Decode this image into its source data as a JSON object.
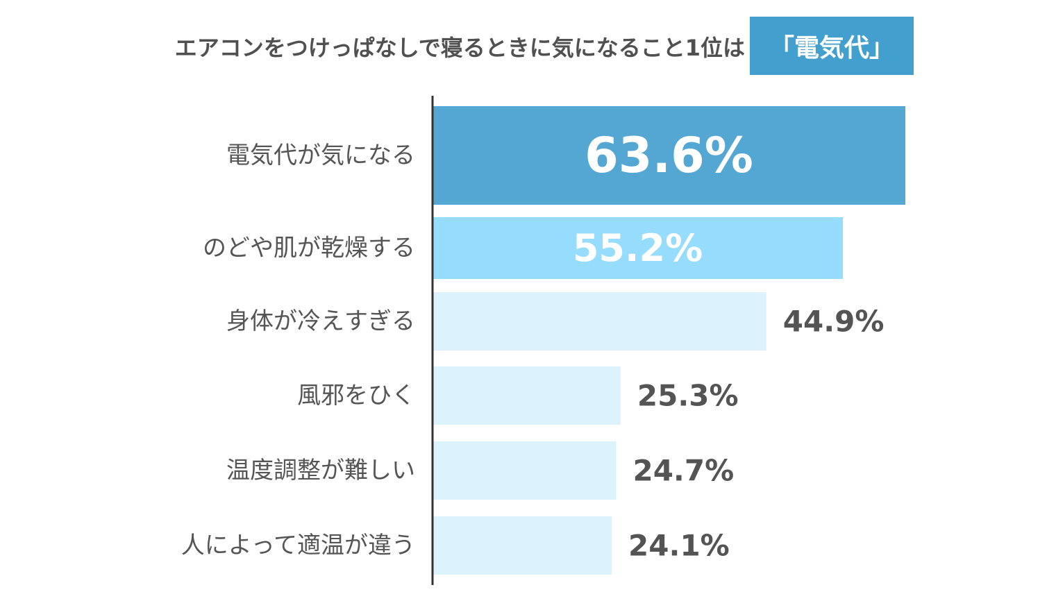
{
  "headline": {
    "text": "エアコンをつけっぱなしで寝るときに気になること1位は",
    "badge": "「電気代」"
  },
  "colors": {
    "badge": "#429fce",
    "top_bar": "#55a7d3",
    "second_bar": "#96dcfc",
    "other_bars": "#dcf2fd",
    "axis": "#333333",
    "dark_value": "#545454",
    "light_value": "#ffffff"
  },
  "chart_data": {
    "type": "bar",
    "orientation": "horizontal",
    "categories": [
      "電気代が気になる",
      "のどや肌が乾燥する",
      "身体が冷えすぎる",
      "風邪をひく",
      "温度調整が難しい",
      "人によって適温が違う"
    ],
    "values": [
      63.6,
      55.2,
      44.9,
      25.3,
      24.7,
      24.1
    ],
    "value_labels": [
      "63.6%",
      "55.2%",
      "44.9%",
      "25.3%",
      "24.7%",
      "24.1%"
    ],
    "unit": "%",
    "xlim": [
      0,
      63.6
    ]
  }
}
